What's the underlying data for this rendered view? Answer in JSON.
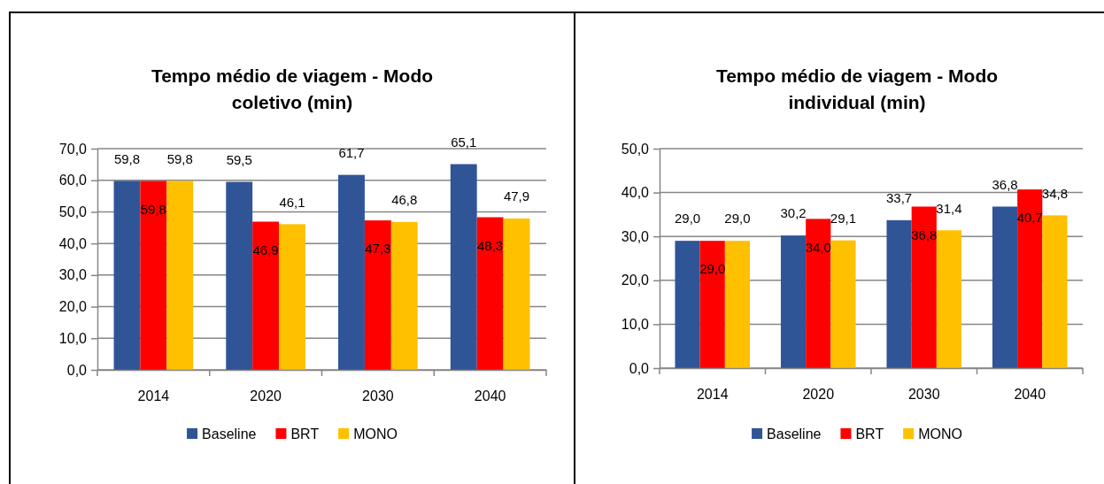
{
  "chart_data": [
    {
      "type": "bar",
      "title": "Tempo médio de viagem - Modo coletivo (min)",
      "categories": [
        "2014",
        "2020",
        "2030",
        "2040"
      ],
      "series": [
        {
          "name": "Baseline",
          "color": "#2f5597",
          "values": [
            59.8,
            59.5,
            61.7,
            65.1
          ],
          "value_labels": [
            "59,8",
            "59,5",
            "61,7",
            "65,1"
          ]
        },
        {
          "name": "BRT",
          "color": "#ff0000",
          "values": [
            59.8,
            46.9,
            47.3,
            48.3
          ],
          "value_labels": [
            "59,8",
            "46,9",
            "47,3",
            "48,3"
          ]
        },
        {
          "name": "MONO",
          "color": "#ffc000",
          "values": [
            59.8,
            46.1,
            46.8,
            47.9
          ],
          "value_labels": [
            "59,8",
            "46,1",
            "46,8",
            "47,9"
          ]
        }
      ],
      "ylim": [
        0,
        70
      ],
      "yticks": [
        {
          "value": 0,
          "label": "0,0"
        },
        {
          "value": 10,
          "label": "10,0"
        },
        {
          "value": 20,
          "label": "20,0"
        },
        {
          "value": 30,
          "label": "30,0"
        },
        {
          "value": 40,
          "label": "40,0"
        },
        {
          "value": 50,
          "label": "50,0"
        },
        {
          "value": 60,
          "label": "60,0"
        },
        {
          "value": 70,
          "label": "70,0"
        }
      ],
      "grid": "y",
      "legend": "bottom"
    },
    {
      "type": "bar",
      "title": "Tempo médio de viagem - Modo individual (min)",
      "categories": [
        "2014",
        "2020",
        "2030",
        "2040"
      ],
      "series": [
        {
          "name": "Baseline",
          "color": "#2f5597",
          "values": [
            29.0,
            30.2,
            33.7,
            36.8
          ],
          "value_labels": [
            "29,0",
            "30,2",
            "33,7",
            "36,8"
          ]
        },
        {
          "name": "BRT",
          "color": "#ff0000",
          "values": [
            29.0,
            34.0,
            36.8,
            40.7
          ],
          "value_labels": [
            "29,0",
            "34,0",
            "36,8",
            "40,7"
          ]
        },
        {
          "name": "MONO",
          "color": "#ffc000",
          "values": [
            29.0,
            29.1,
            31.4,
            34.8
          ],
          "value_labels": [
            "29,0",
            "29,1",
            "31,4",
            "34,8"
          ]
        }
      ],
      "ylim": [
        0,
        50
      ],
      "yticks": [
        {
          "value": 0,
          "label": "0,0"
        },
        {
          "value": 10,
          "label": "10,0"
        },
        {
          "value": 20,
          "label": "20,0"
        },
        {
          "value": 30,
          "label": "30,0"
        },
        {
          "value": 40,
          "label": "40,0"
        },
        {
          "value": 50,
          "label": "50,0"
        }
      ],
      "grid": "y",
      "legend": "bottom"
    }
  ]
}
